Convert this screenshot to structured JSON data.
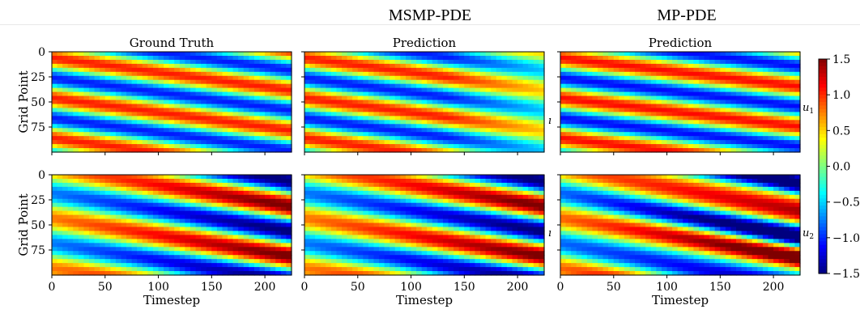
{
  "header": {
    "col2_title": "MSMP-PDE",
    "col3_title": "MP-PDE"
  },
  "side_marks": {
    "row1": "u",
    "row2": "u",
    "row1_sub": "1",
    "row2_sub": "2"
  },
  "colors": {
    "jet": [
      "#00007f",
      "#0000ff",
      "#007fff",
      "#00ffff",
      "#7fff7f",
      "#ffff00",
      "#ff7f00",
      "#ff0000",
      "#7f0000"
    ]
  },
  "chart_data": [
    {
      "type": "heatmap",
      "panel": "row1-col1",
      "title": "Ground Truth",
      "ylabel": "Grid Point",
      "xlabel": "",
      "x_range": [
        0,
        225
      ],
      "y_range": [
        0,
        100
      ],
      "yticks": [
        0,
        25,
        50,
        75
      ],
      "xticks": [],
      "pattern": {
        "field": "u1",
        "source": "ground_truth",
        "stripes": 2.5,
        "slope": 0.17,
        "amp": 1.05,
        "decay": 0.15
      }
    },
    {
      "type": "heatmap",
      "panel": "row1-col2",
      "title": "Prediction",
      "ylabel": "",
      "xlabel": "",
      "x_range": [
        0,
        225
      ],
      "y_range": [
        0,
        100
      ],
      "yticks": [],
      "xticks": [],
      "pattern": {
        "field": "u1",
        "source": "msmp",
        "stripes": 2.5,
        "slope": 0.17,
        "amp": 1.05,
        "decay": 0.55
      }
    },
    {
      "type": "heatmap",
      "panel": "row1-col3",
      "title": "Prediction",
      "ylabel": "",
      "xlabel": "",
      "x_range": [
        0,
        225
      ],
      "y_range": [
        0,
        100
      ],
      "yticks": [],
      "xticks": [],
      "pattern": {
        "field": "u1",
        "source": "mp",
        "stripes": 2.5,
        "slope": 0.15,
        "amp": 1.1,
        "decay": 0.1
      }
    },
    {
      "type": "heatmap",
      "panel": "row2-col1",
      "title": "",
      "ylabel": "Grid Point",
      "xlabel": "Timestep",
      "x_range": [
        0,
        225
      ],
      "y_range": [
        0,
        100
      ],
      "yticks": [
        0,
        25,
        50,
        75
      ],
      "xticks": [
        0,
        50,
        100,
        150,
        200
      ],
      "pattern": {
        "field": "u2",
        "source": "ground_truth",
        "stripes": 2.0,
        "slope": 0.2,
        "amp": 1.4,
        "decay": 0
      }
    },
    {
      "type": "heatmap",
      "panel": "row2-col2",
      "title": "",
      "ylabel": "",
      "xlabel": "Timestep",
      "x_range": [
        0,
        225
      ],
      "y_range": [
        0,
        100
      ],
      "yticks": [],
      "xticks": [
        0,
        50,
        100,
        150,
        200
      ],
      "pattern": {
        "field": "u2",
        "source": "msmp",
        "stripes": 2.0,
        "slope": 0.2,
        "amp": 1.4,
        "decay": 0
      }
    },
    {
      "type": "heatmap",
      "panel": "row2-col3",
      "title": "",
      "ylabel": "",
      "xlabel": "Timestep",
      "x_range": [
        0,
        225
      ],
      "y_range": [
        0,
        100
      ],
      "yticks": [],
      "xticks": [
        0,
        50,
        100,
        150,
        200
      ],
      "pattern": {
        "field": "u2",
        "source": "mp",
        "stripes": 2.0,
        "slope": 0.22,
        "amp": 1.5,
        "decay": 0
      }
    },
    {
      "type": "colorbar",
      "colormap": "jet",
      "range": [
        -1.5,
        1.5
      ],
      "ticks": [
        1.5,
        1.0,
        0.5,
        0.0,
        -0.5,
        -1.0,
        -1.5
      ],
      "tick_labels": [
        "1.5",
        "1.0",
        "0.5",
        "0.0",
        "−0.5",
        "−1.0",
        "−1.5"
      ]
    }
  ]
}
